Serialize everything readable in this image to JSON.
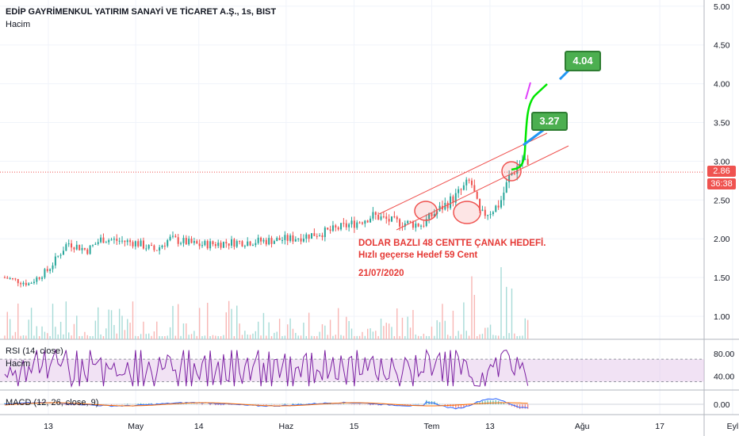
{
  "header": {
    "title": "EDİP GAYRİMENKUL YATIRIM SANAYİ VE TİCARET A.Ş., 1s, BIST",
    "volume_label": "Hacim"
  },
  "indicators": {
    "rsi_label": "RSI (14, close)",
    "rsi_sub_label": "Hacim",
    "macd_label": "MACD (12, 26, close, 9)"
  },
  "annotations": {
    "line1": "DOLAR BAZLI 48 CENTTE ÇANAK HEDEFİ.",
    "line2": "Hızlı geçerse Hedef 59 Cent",
    "date": "21/07/2020",
    "target1": "3.27",
    "target2": "4.04"
  },
  "price_axis": {
    "ticks": [
      "5.00",
      "4.50",
      "4.00",
      "3.50",
      "3.00",
      "2.50",
      "2.00",
      "1.50",
      "1.00"
    ],
    "current_price": "2.86",
    "countdown": "36:38"
  },
  "rsi_axis": {
    "ticks": [
      "80.00",
      "40.00"
    ]
  },
  "macd_axis": {
    "ticks": [
      "0.00"
    ]
  },
  "time_axis": {
    "ticks": [
      "13",
      "May",
      "14",
      "Haz",
      "15",
      "Tem",
      "13",
      "Ağu",
      "17",
      "Eyl"
    ]
  },
  "colors": {
    "up": "#26a69a",
    "down": "#ef5350",
    "rsi_line": "#7b1fa2",
    "rsi_band": "#e1bee7",
    "annotation": "#e53935",
    "callout": "#4caf50",
    "projection": "#00e600",
    "macd": "#2962ff",
    "signal": "#ff6d00"
  },
  "chart_data": {
    "type": "candlestick",
    "title": "EDİP GAYRİMENKUL YATIRIM SANAYİ VE TİCARET A.Ş., 1s, BIST",
    "interval": "1s",
    "ylim": [
      0.8,
      5.0
    ],
    "y_ticks": [
      1.0,
      1.5,
      2.0,
      2.5,
      3.0,
      3.5,
      4.0,
      4.5,
      5.0
    ],
    "x_ticks": [
      "13",
      "May",
      "14",
      "Haz",
      "15",
      "Tem",
      "13",
      "Ağu",
      "17",
      "Eyl"
    ],
    "price_path": [
      {
        "t": "Apr 4",
        "price": 1.5
      },
      {
        "t": "Apr 9",
        "price": 1.42
      },
      {
        "t": "Apr 13",
        "price": 1.6
      },
      {
        "t": "Apr 17",
        "price": 1.95
      },
      {
        "t": "Apr 21",
        "price": 1.85
      },
      {
        "t": "Apr 24",
        "price": 2.0
      },
      {
        "t": "May 1",
        "price": 1.95
      },
      {
        "t": "May 5",
        "price": 1.85
      },
      {
        "t": "May 8",
        "price": 2.0
      },
      {
        "t": "May 14",
        "price": 1.92
      },
      {
        "t": "May 20",
        "price": 1.95
      },
      {
        "t": "May 27",
        "price": 1.97
      },
      {
        "t": "Jun 2",
        "price": 2.0
      },
      {
        "t": "Jun 10",
        "price": 2.1
      },
      {
        "t": "Jun 15",
        "price": 2.2
      },
      {
        "t": "Jun 19",
        "price": 2.3
      },
      {
        "t": "Jun 23",
        "price": 2.22
      },
      {
        "t": "Jun 29",
        "price": 2.18
      },
      {
        "t": "Jul 1",
        "price": 2.3
      },
      {
        "t": "Jul 3",
        "price": 2.4
      },
      {
        "t": "Jul 6",
        "price": 2.55
      },
      {
        "t": "Jul 9",
        "price": 2.75
      },
      {
        "t": "Jul 11",
        "price": 2.3
      },
      {
        "t": "Jul 13",
        "price": 2.35
      },
      {
        "t": "Jul 15",
        "price": 2.45
      },
      {
        "t": "Jul 17",
        "price": 2.8
      },
      {
        "t": "Jul 20",
        "price": 3.05
      },
      {
        "t": "Jul 21",
        "price": 2.86
      }
    ],
    "current_price": 2.86,
    "targets": [
      3.27,
      4.04
    ],
    "rsi": {
      "ylim": [
        0,
        100
      ],
      "ticks": [
        80,
        40
      ],
      "band": [
        30,
        70
      ]
    },
    "macd": {
      "ticks": [
        0
      ]
    }
  }
}
